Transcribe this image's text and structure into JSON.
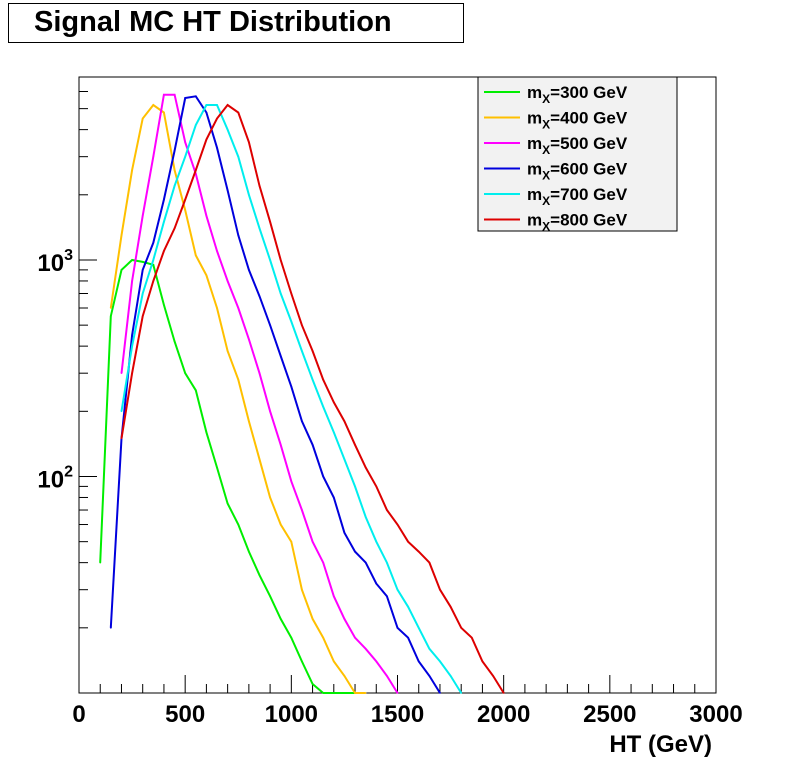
{
  "chart_data": {
    "type": "line",
    "title": "Signal MC HT Distribution",
    "xlabel": "HT (GeV)",
    "ylabel": "",
    "xlim": [
      0,
      3000
    ],
    "ylim": [
      10,
      7000
    ],
    "yscale": "log",
    "grid": false,
    "legend_position": "top-right",
    "x_ticks": [
      0,
      500,
      1000,
      1500,
      2000,
      2500,
      3000
    ],
    "y_ticks": [
      {
        "value": 1000,
        "base": "10",
        "exp": "3"
      },
      {
        "value": 100,
        "base": "10",
        "exp": "2"
      }
    ],
    "series": [
      {
        "name": "m_X=300 GeV",
        "label_main": "m",
        "label_sub": "X",
        "label_rest": "=300 GeV",
        "color": "#00ee00",
        "x": [
          100,
          150,
          200,
          250,
          300,
          350,
          400,
          450,
          500,
          550,
          600,
          650,
          700,
          750,
          800,
          850,
          900,
          950,
          1000,
          1050,
          1100,
          1150,
          1200,
          1250,
          1300
        ],
        "y": [
          40,
          550,
          900,
          1000,
          980,
          950,
          620,
          420,
          300,
          250,
          160,
          110,
          75,
          60,
          45,
          35,
          28,
          22,
          18,
          14,
          11,
          10,
          10,
          10,
          10
        ]
      },
      {
        "name": "m_X=400 GeV",
        "label_main": "m",
        "label_sub": "X",
        "label_rest": "=400 GeV",
        "color": "#ffc000",
        "x": [
          150,
          200,
          250,
          300,
          350,
          400,
          450,
          500,
          550,
          600,
          650,
          700,
          750,
          800,
          850,
          900,
          950,
          1000,
          1050,
          1100,
          1150,
          1200,
          1250,
          1300,
          1350
        ],
        "y": [
          600,
          1300,
          2600,
          4500,
          5200,
          4800,
          2600,
          1700,
          1050,
          850,
          600,
          380,
          280,
          180,
          120,
          80,
          60,
          50,
          30,
          22,
          18,
          14,
          12,
          10,
          10
        ]
      },
      {
        "name": "m_X=500 GeV",
        "label_main": "m",
        "label_sub": "X",
        "label_rest": "=500 GeV",
        "color": "#ff00ff",
        "x": [
          200,
          250,
          300,
          350,
          400,
          450,
          500,
          550,
          600,
          650,
          700,
          750,
          800,
          850,
          900,
          950,
          1000,
          1050,
          1100,
          1150,
          1200,
          1250,
          1300,
          1350,
          1400,
          1450,
          1500
        ],
        "y": [
          300,
          800,
          1600,
          3000,
          5800,
          5800,
          3500,
          2500,
          1600,
          1100,
          800,
          600,
          430,
          300,
          200,
          140,
          95,
          70,
          50,
          40,
          28,
          22,
          18,
          16,
          14,
          12,
          10
        ]
      },
      {
        "name": "m_X=600 GeV",
        "label_main": "m",
        "label_sub": "X",
        "label_rest": "=600 GeV",
        "color": "#0000dd",
        "x": [
          150,
          200,
          250,
          300,
          350,
          400,
          450,
          500,
          550,
          600,
          650,
          700,
          750,
          800,
          850,
          900,
          950,
          1000,
          1050,
          1100,
          1150,
          1200,
          1250,
          1300,
          1350,
          1400,
          1450,
          1500,
          1550,
          1600,
          1650,
          1700
        ],
        "y": [
          20,
          150,
          450,
          900,
          1200,
          1900,
          3200,
          5600,
          5700,
          4800,
          3300,
          2100,
          1300,
          900,
          680,
          500,
          360,
          260,
          180,
          140,
          100,
          80,
          55,
          45,
          40,
          32,
          28,
          20,
          18,
          14,
          12,
          10
        ]
      },
      {
        "name": "m_X=700 GeV",
        "label_main": "m",
        "label_sub": "X",
        "label_rest": "=700 GeV",
        "color": "#00eeee",
        "x": [
          200,
          250,
          300,
          350,
          400,
          450,
          500,
          550,
          600,
          650,
          700,
          750,
          800,
          850,
          900,
          950,
          1000,
          1050,
          1100,
          1150,
          1200,
          1250,
          1300,
          1350,
          1400,
          1450,
          1500,
          1550,
          1600,
          1650,
          1700,
          1750,
          1800
        ],
        "y": [
          200,
          400,
          700,
          1000,
          1500,
          2200,
          3000,
          4200,
          5200,
          5200,
          4000,
          3000,
          2000,
          1400,
          1000,
          700,
          520,
          380,
          280,
          210,
          160,
          120,
          90,
          65,
          50,
          40,
          30,
          25,
          20,
          16,
          14,
          12,
          10
        ]
      },
      {
        "name": "m_X=800 GeV",
        "label_main": "m",
        "label_sub": "X",
        "label_rest": "=800 GeV",
        "color": "#dd0000",
        "x": [
          200,
          250,
          300,
          350,
          400,
          450,
          500,
          550,
          600,
          650,
          700,
          750,
          800,
          850,
          900,
          950,
          1000,
          1050,
          1100,
          1150,
          1200,
          1250,
          1300,
          1350,
          1400,
          1450,
          1500,
          1550,
          1600,
          1650,
          1700,
          1750,
          1800,
          1850,
          1900,
          1950,
          2000
        ],
        "y": [
          150,
          300,
          550,
          800,
          1100,
          1400,
          1900,
          2600,
          3600,
          4500,
          5200,
          4800,
          3500,
          2200,
          1500,
          1000,
          700,
          500,
          380,
          280,
          220,
          180,
          140,
          110,
          90,
          70,
          60,
          50,
          45,
          40,
          30,
          25,
          20,
          18,
          14,
          12,
          10
        ]
      }
    ]
  }
}
